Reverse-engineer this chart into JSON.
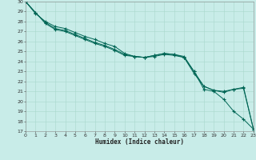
{
  "title": "",
  "xlabel": "Humidex (Indice chaleur)",
  "ylabel": "",
  "background_color": "#c8ece8",
  "grid_color": "#a8d8cc",
  "line_color": "#006655",
  "xlim": [
    0,
    23
  ],
  "ylim": [
    17,
    30
  ],
  "yticks": [
    17,
    18,
    19,
    20,
    21,
    22,
    23,
    24,
    25,
    26,
    27,
    28,
    29,
    30
  ],
  "xticks": [
    0,
    1,
    2,
    3,
    4,
    5,
    6,
    7,
    8,
    9,
    10,
    11,
    12,
    13,
    14,
    15,
    16,
    17,
    18,
    19,
    20,
    21,
    22,
    23
  ],
  "line1_x": [
    0,
    1,
    2,
    3,
    4,
    5,
    6,
    7,
    8,
    9,
    10,
    11,
    12,
    13,
    14,
    15,
    16,
    17,
    18,
    19,
    20,
    21,
    22,
    23
  ],
  "line1_y": [
    30,
    28.8,
    28.0,
    27.5,
    27.3,
    26.9,
    26.5,
    26.2,
    25.8,
    25.5,
    24.8,
    24.5,
    24.4,
    24.6,
    24.8,
    24.7,
    24.4,
    23.0,
    21.2,
    21.0,
    20.2,
    19.0,
    18.2,
    17.2
  ],
  "line2_x": [
    0,
    1,
    2,
    3,
    4,
    5,
    6,
    7,
    8,
    9,
    10,
    11,
    12,
    13,
    14,
    15,
    16,
    17,
    18,
    19,
    20,
    21,
    22,
    23
  ],
  "line2_y": [
    30,
    28.9,
    27.8,
    27.2,
    27.0,
    26.6,
    26.2,
    25.8,
    25.5,
    25.1,
    24.6,
    24.5,
    24.4,
    24.5,
    24.7,
    24.6,
    24.4,
    22.8,
    21.5,
    21.1,
    21.0,
    21.2,
    21.4,
    17.2
  ],
  "line3_x": [
    0,
    1,
    2,
    3,
    4,
    5,
    6,
    7,
    8,
    9,
    10,
    11,
    12,
    13,
    14,
    15,
    16,
    17,
    18,
    19,
    20,
    21,
    22,
    23
  ],
  "line3_y": [
    30,
    28.9,
    27.9,
    27.3,
    27.1,
    26.7,
    26.3,
    25.9,
    25.6,
    25.2,
    24.7,
    24.5,
    24.4,
    24.6,
    24.8,
    24.7,
    24.5,
    23.0,
    21.5,
    21.1,
    20.9,
    21.2,
    21.3,
    17.2
  ]
}
